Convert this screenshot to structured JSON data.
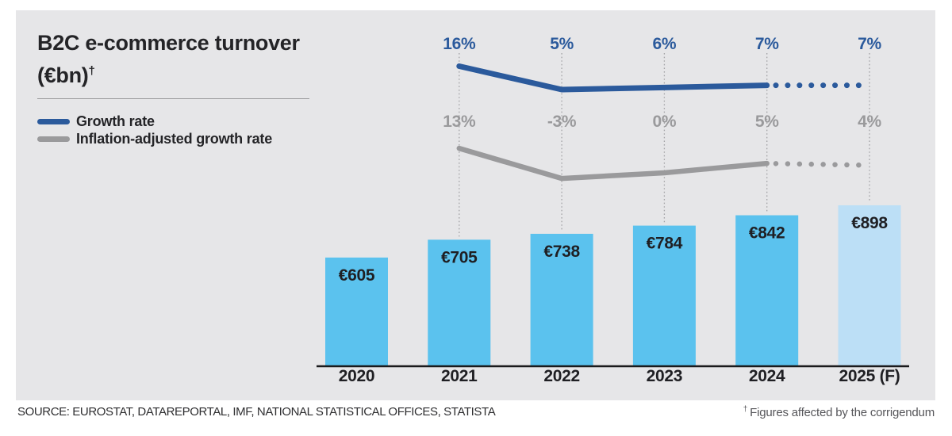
{
  "panel": {
    "title_line1": "B2C e-commerce turnover",
    "title_line2": "(€bn)",
    "title_dagger": "†",
    "legend": [
      {
        "label": "Growth rate",
        "color": "#2b5a9c"
      },
      {
        "label": "Inflation-adjusted growth rate",
        "color": "#9a9a9c"
      }
    ]
  },
  "footer": {
    "source": "SOURCE: EUROSTAT, DATAREPORTAL, IMF, NATIONAL STATISTICAL OFFICES, STATISTA",
    "footnote_dagger": "†",
    "footnote_text": "Figures affected by the corrigendum"
  },
  "chart_data": {
    "type": "bar+line",
    "title": "B2C e-commerce turnover (€bn)",
    "categories": [
      "2020",
      "2021",
      "2022",
      "2023",
      "2024",
      "2025 (F)"
    ],
    "bars": {
      "name": "Turnover (€bn)",
      "values": [
        605,
        705,
        738,
        784,
        842,
        898
      ],
      "labels": [
        "€605",
        "€705",
        "€738",
        "€784",
        "€842",
        "€898"
      ],
      "forecast_index": 5
    },
    "series": [
      {
        "name": "Growth rate",
        "values": [
          null,
          16,
          5,
          6,
          7,
          7
        ],
        "labels": [
          "",
          "16%",
          "5%",
          "6%",
          "7%",
          "7%"
        ],
        "color": "#2b5a9c",
        "dotted_from_index": 4
      },
      {
        "name": "Inflation-adjusted growth rate",
        "values": [
          null,
          13,
          -3,
          0,
          5,
          4
        ],
        "labels": [
          "",
          "13%",
          "-3%",
          "0%",
          "5%",
          "4%"
        ],
        "color": "#9a9a9c",
        "dotted_from_index": 4
      }
    ],
    "colors": {
      "bar": "#5bc2ee",
      "bar_forecast": "#bcdff6",
      "axis": "#1a1a1c",
      "text": "#1f1f23",
      "vline": "#a3a3a6",
      "background": "#e6e6e8"
    },
    "layout_hints": {
      "legend_position": "top-left",
      "grid": "off",
      "value_labels": "inside-bar-top",
      "series_labels": "above-points",
      "forecast_style": "dotted-line-and-light-bar"
    }
  }
}
